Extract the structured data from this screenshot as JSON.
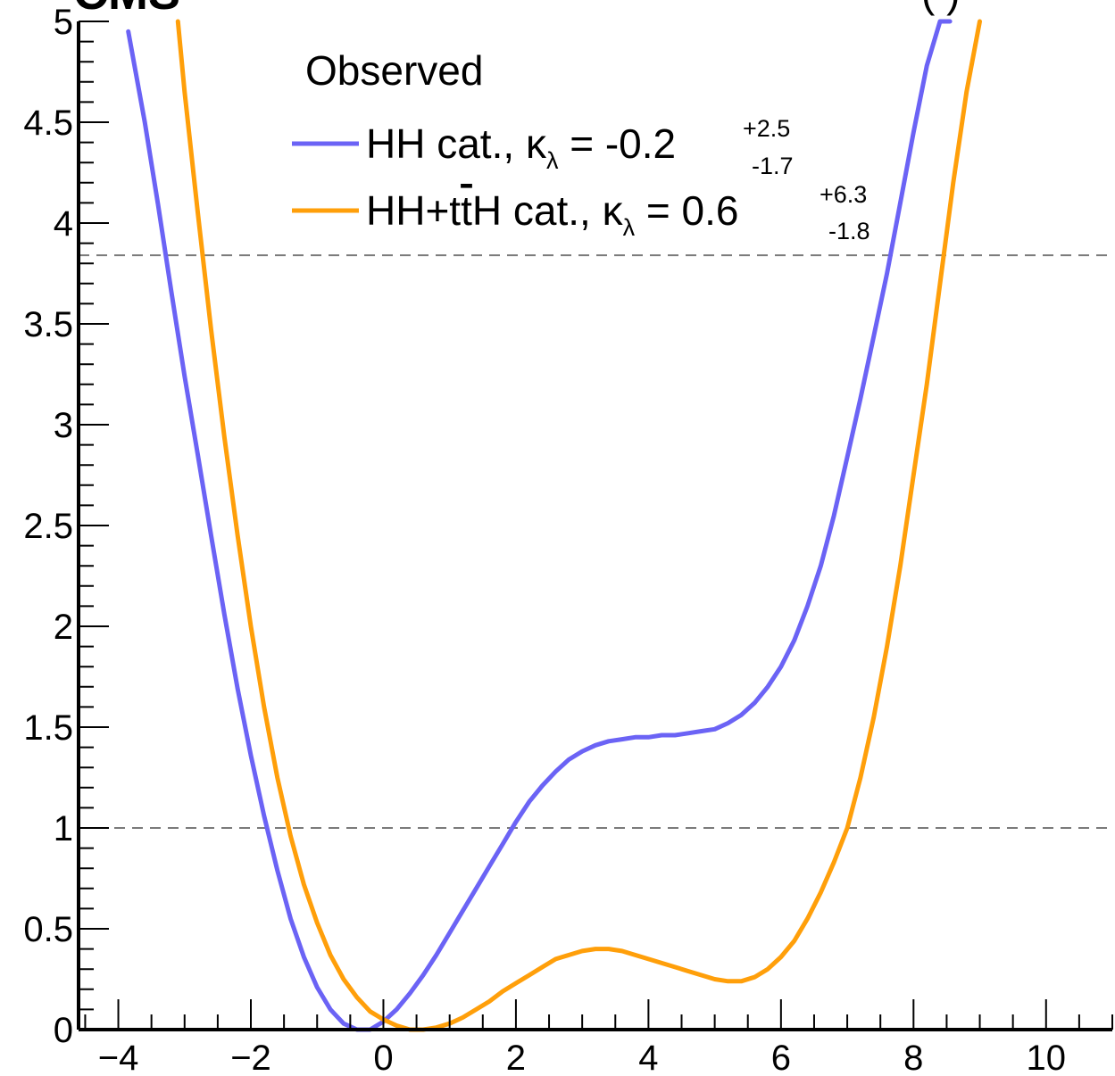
{
  "chart_data": {
    "type": "line",
    "header_left": "CMS",
    "header_right": "(      )",
    "xlim": [
      -4.6,
      11.0
    ],
    "ylim": [
      0,
      5
    ],
    "x_ticks": [
      -4,
      -2,
      0,
      2,
      4,
      6,
      8,
      10
    ],
    "x_tick_labels": [
      "−4",
      "−2",
      "0",
      "2",
      "4",
      "6",
      "8",
      "10"
    ],
    "y_ticks": [
      0,
      0.5,
      1,
      1.5,
      2,
      2.5,
      3,
      3.5,
      4,
      4.5,
      5
    ],
    "y_tick_labels": [
      "0",
      "0.5",
      "1",
      "1.5",
      "2",
      "2.5",
      "3",
      "3.5",
      "4",
      "4.5",
      "5"
    ],
    "reference_lines": [
      1.0,
      3.84
    ],
    "grid": false,
    "legend": {
      "title": "Observed",
      "placement": "top",
      "entries": [
        {
          "prefix": "HH cat., ",
          "kappa": "κ",
          "sub": "λ",
          "eq": " = -0.2",
          "up": "+2.5",
          "down": "-1.7"
        },
        {
          "prefix": "HH+t",
          "tbar": "t",
          "suffix": "H cat., ",
          "kappa": "κ",
          "sub": "λ",
          "eq": " = 0.6",
          "up": "+6.3",
          "down": "-1.8"
        }
      ]
    },
    "series": [
      {
        "name": "HH cat.",
        "color": "#6b63f5",
        "x": [
          -3.85,
          -3.6,
          -3.4,
          -3.2,
          -3.0,
          -2.8,
          -2.6,
          -2.4,
          -2.2,
          -2.0,
          -1.8,
          -1.6,
          -1.4,
          -1.2,
          -1.0,
          -0.8,
          -0.6,
          -0.4,
          -0.2,
          0.0,
          0.2,
          0.4,
          0.6,
          0.8,
          1.0,
          1.2,
          1.4,
          1.6,
          1.8,
          2.0,
          2.2,
          2.4,
          2.6,
          2.8,
          3.0,
          3.2,
          3.4,
          3.6,
          3.8,
          4.0,
          4.2,
          4.4,
          4.6,
          4.8,
          5.0,
          5.2,
          5.4,
          5.6,
          5.8,
          6.0,
          6.2,
          6.4,
          6.6,
          6.8,
          7.0,
          7.2,
          7.4,
          7.6,
          7.8,
          8.0,
          8.2,
          8.4,
          8.55
        ],
        "y": [
          4.95,
          4.5,
          4.09,
          3.66,
          3.24,
          2.85,
          2.45,
          2.06,
          1.69,
          1.36,
          1.06,
          0.79,
          0.55,
          0.36,
          0.21,
          0.1,
          0.03,
          0.0,
          0.0,
          0.04,
          0.1,
          0.18,
          0.27,
          0.37,
          0.48,
          0.59,
          0.7,
          0.81,
          0.92,
          1.03,
          1.13,
          1.21,
          1.28,
          1.34,
          1.38,
          1.41,
          1.43,
          1.44,
          1.45,
          1.45,
          1.46,
          1.46,
          1.47,
          1.48,
          1.49,
          1.52,
          1.56,
          1.62,
          1.7,
          1.8,
          1.93,
          2.1,
          2.3,
          2.55,
          2.84,
          3.13,
          3.44,
          3.75,
          4.1,
          4.45,
          4.78,
          5.0,
          5.0
        ]
      },
      {
        "name": "HH+ttH cat.",
        "color": "#ff9f0a",
        "x": [
          -3.1,
          -3.0,
          -2.8,
          -2.6,
          -2.4,
          -2.2,
          -2.0,
          -1.8,
          -1.6,
          -1.4,
          -1.2,
          -1.0,
          -0.8,
          -0.6,
          -0.4,
          -0.2,
          0.0,
          0.2,
          0.4,
          0.6,
          0.8,
          1.0,
          1.2,
          1.4,
          1.6,
          1.8,
          2.0,
          2.2,
          2.4,
          2.6,
          2.8,
          3.0,
          3.2,
          3.4,
          3.6,
          3.8,
          4.0,
          4.2,
          4.4,
          4.6,
          4.8,
          5.0,
          5.2,
          5.4,
          5.6,
          5.8,
          6.0,
          6.2,
          6.4,
          6.6,
          6.8,
          7.0,
          7.2,
          7.4,
          7.6,
          7.8,
          8.0,
          8.2,
          8.4,
          8.6,
          8.8,
          9.0
        ],
        "y": [
          5.0,
          4.65,
          4.05,
          3.47,
          2.94,
          2.45,
          2.0,
          1.6,
          1.25,
          0.96,
          0.72,
          0.53,
          0.37,
          0.25,
          0.16,
          0.09,
          0.05,
          0.02,
          0.0,
          0.0,
          0.01,
          0.03,
          0.06,
          0.1,
          0.14,
          0.19,
          0.23,
          0.27,
          0.31,
          0.35,
          0.37,
          0.39,
          0.4,
          0.4,
          0.39,
          0.37,
          0.35,
          0.33,
          0.31,
          0.29,
          0.27,
          0.25,
          0.24,
          0.24,
          0.26,
          0.3,
          0.36,
          0.44,
          0.55,
          0.68,
          0.83,
          1.0,
          1.25,
          1.55,
          1.9,
          2.3,
          2.75,
          3.2,
          3.7,
          4.2,
          4.65,
          5.0
        ]
      }
    ]
  }
}
